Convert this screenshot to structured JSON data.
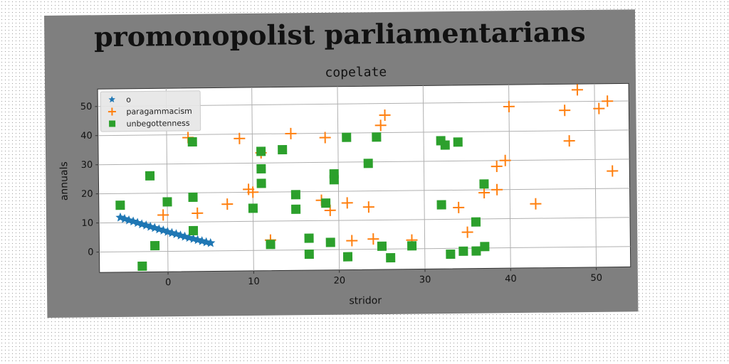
{
  "figure_title": "promonopolist parliamentarians",
  "chart_data": {
    "type": "scatter",
    "title": "copelate",
    "xlabel": "stridor",
    "ylabel": "annuals",
    "xlim": [
      -8,
      54
    ],
    "ylim": [
      -7,
      56
    ],
    "xticks": [
      0,
      10,
      20,
      30,
      40,
      50
    ],
    "yticks": [
      0,
      10,
      20,
      30,
      40,
      50
    ],
    "grid": true,
    "legend_position": "top-left",
    "series": [
      {
        "name": "o",
        "marker": "star",
        "color": "#1f77b4",
        "x": [
          -5.5,
          -5.0,
          -4.5,
          -4.0,
          -3.5,
          -3.0,
          -2.5,
          -2.0,
          -1.5,
          -1.0,
          -0.5,
          0.0,
          0.5,
          1.0,
          1.5,
          2.0,
          2.5,
          3.0,
          3.5,
          4.0,
          4.5,
          5.0
        ],
        "y": [
          11.8,
          11.3,
          10.8,
          10.4,
          9.9,
          9.4,
          9.0,
          8.5,
          8.1,
          7.6,
          7.2,
          6.7,
          6.3,
          5.9,
          5.4,
          5.0,
          4.6,
          4.2,
          3.8,
          3.4,
          3.0,
          2.7
        ]
      },
      {
        "name": "paragammacism",
        "marker": "plus",
        "color": "#ff7f0e",
        "x": [
          -0.5,
          2.5,
          3.5,
          7,
          8.5,
          9.5,
          10,
          11,
          12,
          14.5,
          18,
          18.5,
          19,
          21,
          21.5,
          23.5,
          24,
          25,
          25.5,
          28.5,
          34,
          35,
          37,
          38.5,
          38.5,
          39.5,
          40,
          43,
          46.5,
          47,
          48,
          50.5,
          51.5,
          52
        ],
        "y": [
          12.5,
          39,
          13,
          16,
          38.5,
          21,
          20,
          33.5,
          3.5,
          40,
          17,
          38.5,
          13.5,
          16,
          3,
          14.5,
          3.5,
          42.5,
          46,
          3,
          14,
          5.5,
          19,
          20,
          28,
          30,
          48.5,
          15,
          47,
          36.5,
          54,
          47.5,
          50,
          26
        ]
      },
      {
        "name": "unbegottenness",
        "marker": "square",
        "color": "#2ca02c",
        "x": [
          -5.5,
          -3,
          -2,
          -1.5,
          0,
          3,
          3,
          3,
          10,
          11,
          11,
          11,
          12,
          13.5,
          15,
          15,
          16.5,
          16.5,
          18.5,
          19,
          19.5,
          19.5,
          21,
          21,
          23.5,
          24.5,
          25,
          26,
          28.5,
          32,
          32,
          32.5,
          33,
          34,
          34.5,
          36,
          36,
          37,
          37
        ],
        "y": [
          16,
          -5,
          26,
          2,
          17,
          37.5,
          18.5,
          7,
          14.5,
          34,
          28,
          23,
          2,
          34.5,
          19,
          14,
          4,
          -1.5,
          16,
          2.5,
          26,
          24,
          38.5,
          -2.5,
          29.5,
          38.5,
          1,
          -3,
          1,
          37,
          15,
          35.5,
          -2,
          36.5,
          -1,
          9,
          -1,
          22,
          0.5
        ]
      }
    ]
  }
}
